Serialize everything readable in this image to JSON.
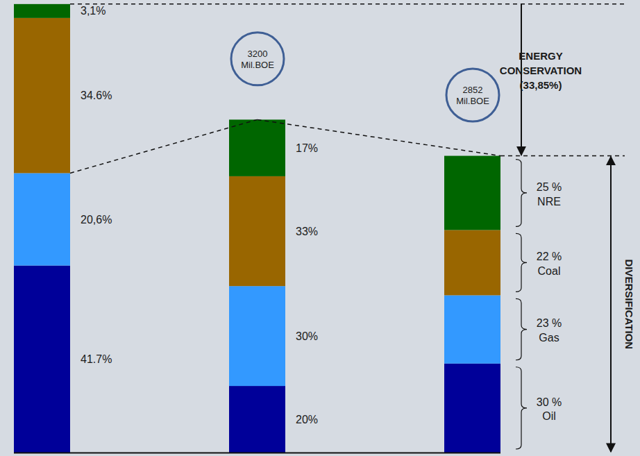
{
  "chart_data": {
    "type": "bar",
    "stacked": true,
    "data_labels": true,
    "tick_labels": false,
    "categories": [
      null,
      null,
      null
    ],
    "ylim": [
      0,
      4350
    ],
    "totals": [
      4311,
      3200,
      2852
    ],
    "total_labels": [
      null,
      "3200 Mil.BOE",
      "2852 Mil.BOE"
    ],
    "series": [
      {
        "name": "Oil",
        "color": "#000099",
        "values": [
          41.7,
          20,
          30
        ],
        "value_labels": [
          "41.7%",
          "20%",
          "30 %"
        ]
      },
      {
        "name": "Gas",
        "color": "#3399ff",
        "values": [
          20.6,
          30,
          23
        ],
        "value_labels": [
          "20,6%",
          "30%",
          "23 %"
        ]
      },
      {
        "name": "Coal",
        "color": "#996600",
        "values": [
          34.6,
          33,
          22
        ],
        "value_labels": [
          "34.6%",
          "33%",
          "22 %"
        ]
      },
      {
        "name": "NRE",
        "color": "#006600",
        "values": [
          3.1,
          17,
          25
        ],
        "value_labels": [
          "3,1%",
          "17%",
          "25 %"
        ]
      }
    ],
    "annotations": {
      "conservation": [
        "ENERGY",
        "CONSERVATION",
        "(33,85%)"
      ],
      "diversification": "DIVERSIFICATION"
    }
  }
}
